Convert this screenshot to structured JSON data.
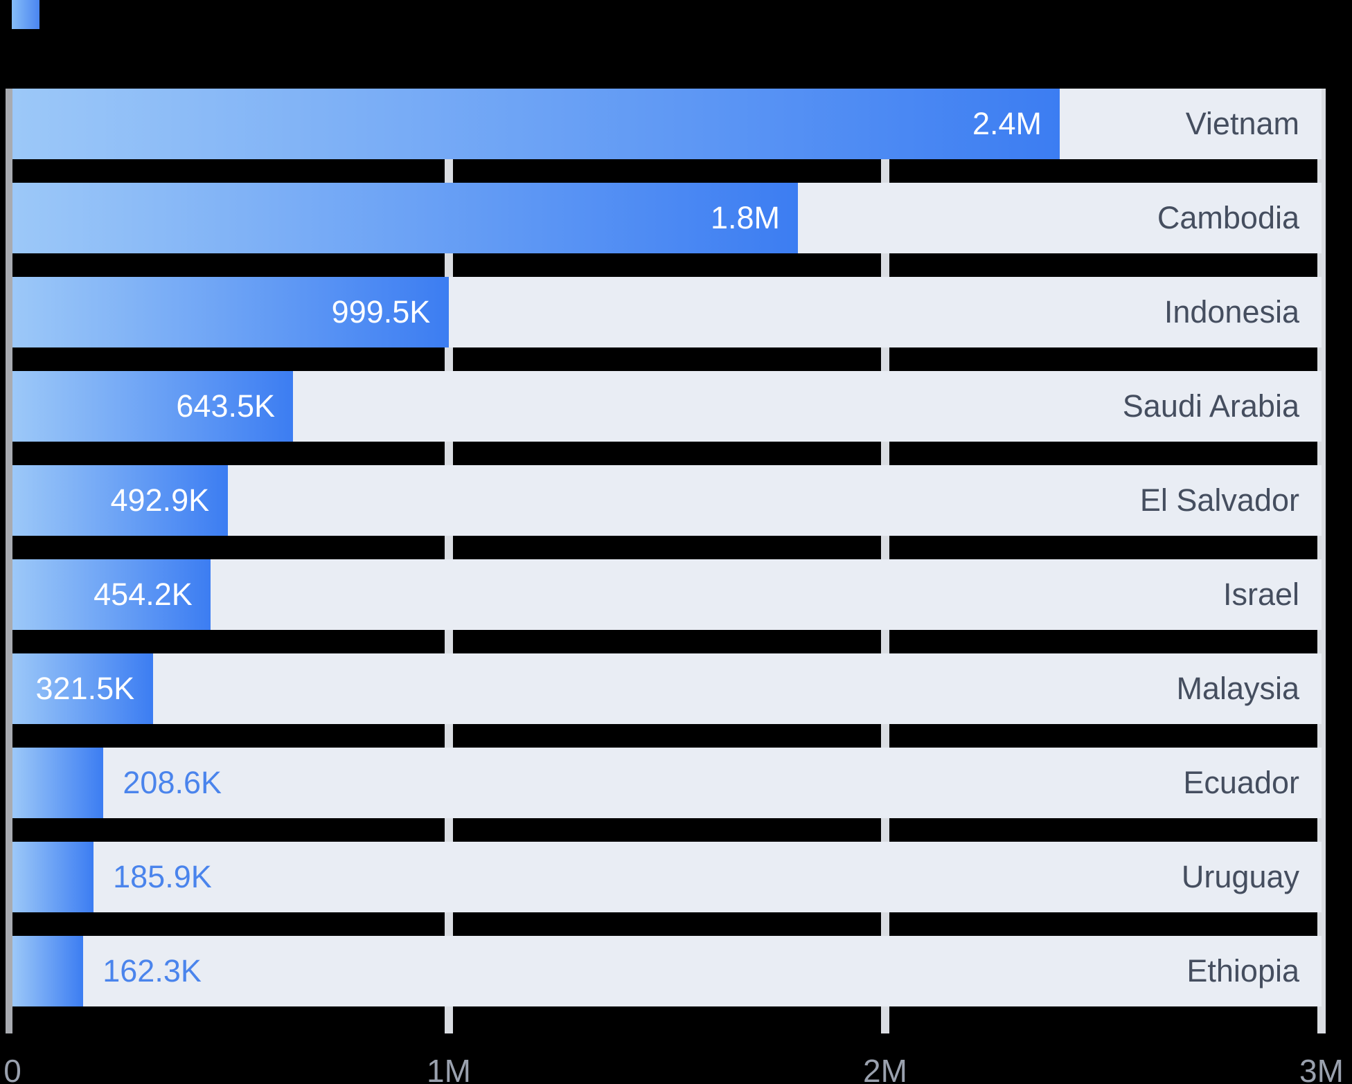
{
  "chart_data": {
    "type": "bar",
    "orientation": "horizontal",
    "categories": [
      "Vietnam",
      "Cambodia",
      "Indonesia",
      "Saudi Arabia",
      "El Salvador",
      "Israel",
      "Malaysia",
      "Ecuador",
      "Uruguay",
      "Ethiopia"
    ],
    "values": [
      2400000,
      1800000,
      999500,
      643500,
      492900,
      454200,
      321500,
      208600,
      185900,
      162300
    ],
    "value_labels": [
      "2.4M",
      "1.8M",
      "999.5K",
      "643.5K",
      "492.9K",
      "454.2K",
      "321.5K",
      "208.6K",
      "185.9K",
      "162.3K"
    ],
    "x_ticks": [
      {
        "label": "0",
        "value": 0
      },
      {
        "label": "1M",
        "value": 1000000
      },
      {
        "label": "2M",
        "value": 2000000
      },
      {
        "label": "3M",
        "value": 3000000
      }
    ],
    "xlim": [
      0,
      3000000
    ],
    "grid": true,
    "legend_position": "top-left",
    "colors": {
      "background": "#000000",
      "bar_gradient_start": "#9cc8f8",
      "bar_gradient_end": "#3c7df2",
      "track": "#e9edf4",
      "value_label_inside": "#ffffff",
      "value_label_outside": "#4a84ec",
      "category_label": "#454e5f",
      "axis_label": "#9aa1ae",
      "gridline": "#dadde2",
      "axis_line": "#a8abb1",
      "legend_swatch_start": "#86bdf8",
      "legend_swatch_end": "#4a85f0"
    }
  }
}
